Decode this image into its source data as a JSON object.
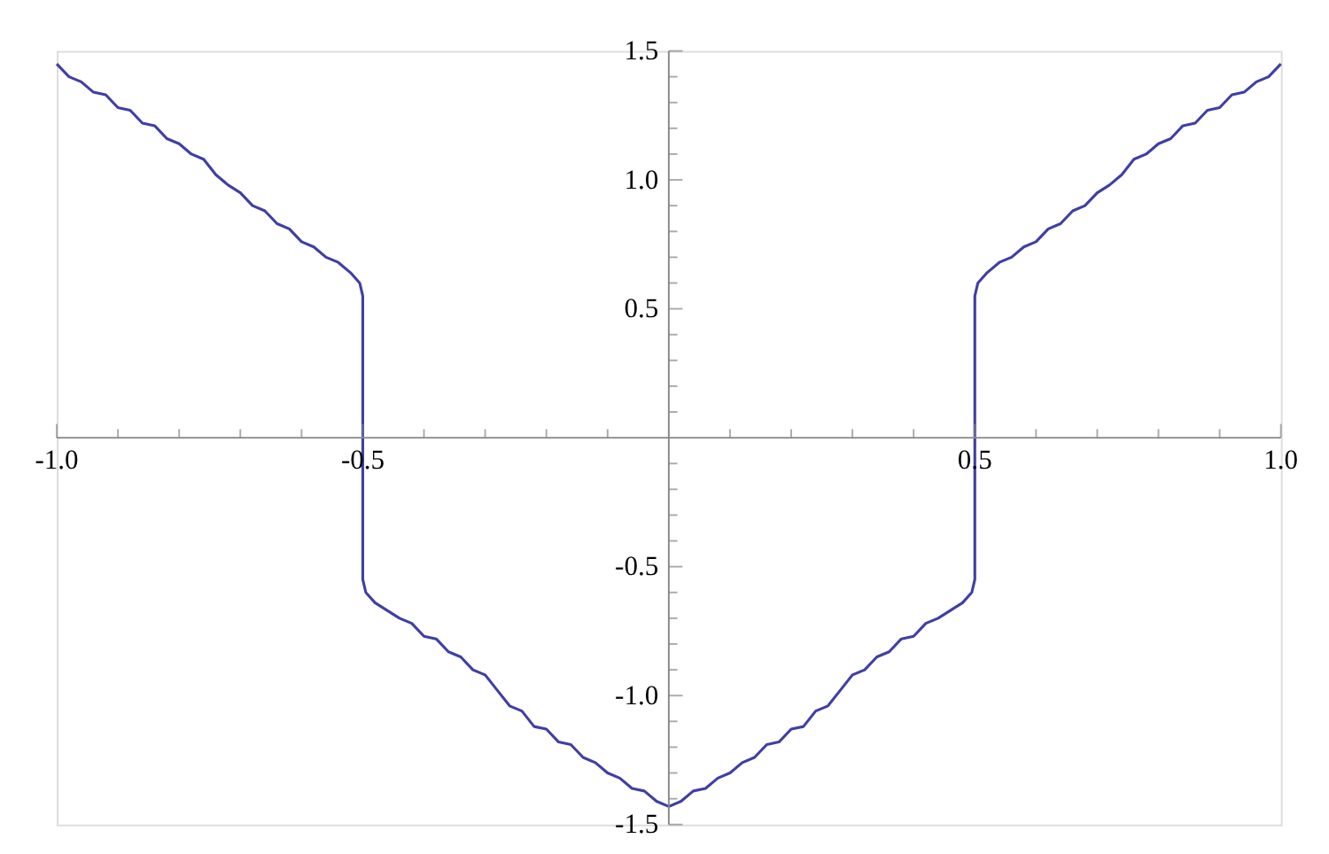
{
  "chart_data": {
    "type": "line",
    "x": [
      -1.0,
      -0.98,
      -0.96,
      -0.94,
      -0.92,
      -0.9,
      -0.88,
      -0.86,
      -0.84,
      -0.82,
      -0.8,
      -0.78,
      -0.76,
      -0.74,
      -0.72,
      -0.7,
      -0.68,
      -0.66,
      -0.64,
      -0.62,
      -0.6,
      -0.58,
      -0.56,
      -0.54,
      -0.52,
      -0.505,
      -0.5,
      -0.5,
      -0.495,
      -0.48,
      -0.46,
      -0.44,
      -0.42,
      -0.4,
      -0.38,
      -0.36,
      -0.34,
      -0.32,
      -0.3,
      -0.28,
      -0.26,
      -0.24,
      -0.22,
      -0.2,
      -0.18,
      -0.16,
      -0.14,
      -0.12,
      -0.1,
      -0.08,
      -0.06,
      -0.04,
      -0.02,
      0.0,
      0.02,
      0.04,
      0.06,
      0.08,
      0.1,
      0.12,
      0.14,
      0.16,
      0.18,
      0.2,
      0.22,
      0.24,
      0.26,
      0.28,
      0.3,
      0.32,
      0.34,
      0.36,
      0.38,
      0.4,
      0.42,
      0.44,
      0.46,
      0.48,
      0.495,
      0.5,
      0.5,
      0.505,
      0.52,
      0.54,
      0.56,
      0.58,
      0.6,
      0.62,
      0.64,
      0.66,
      0.68,
      0.7,
      0.72,
      0.74,
      0.76,
      0.78,
      0.8,
      0.82,
      0.84,
      0.86,
      0.88,
      0.9,
      0.92,
      0.94,
      0.96,
      0.98,
      1.0
    ],
    "series": [
      {
        "color": "#3f3fa6",
        "values": [
          1.45,
          1.4,
          1.38,
          1.34,
          1.33,
          1.28,
          1.27,
          1.22,
          1.21,
          1.16,
          1.14,
          1.1,
          1.08,
          1.02,
          0.98,
          0.95,
          0.9,
          0.88,
          0.83,
          0.81,
          0.76,
          0.74,
          0.7,
          0.68,
          0.64,
          0.6,
          0.55,
          -0.55,
          -0.6,
          -0.64,
          -0.67,
          -0.7,
          -0.72,
          -0.77,
          -0.78,
          -0.83,
          -0.85,
          -0.9,
          -0.92,
          -0.98,
          -1.04,
          -1.06,
          -1.12,
          -1.13,
          -1.18,
          -1.19,
          -1.24,
          -1.26,
          -1.3,
          -1.32,
          -1.36,
          -1.37,
          -1.41,
          -1.43,
          -1.41,
          -1.37,
          -1.36,
          -1.32,
          -1.3,
          -1.26,
          -1.24,
          -1.19,
          -1.18,
          -1.13,
          -1.12,
          -1.06,
          -1.04,
          -0.98,
          -0.92,
          -0.9,
          -0.85,
          -0.83,
          -0.78,
          -0.77,
          -0.72,
          -0.7,
          -0.67,
          -0.64,
          -0.6,
          -0.55,
          0.55,
          0.6,
          0.64,
          0.68,
          0.7,
          0.74,
          0.76,
          0.81,
          0.83,
          0.88,
          0.9,
          0.95,
          0.98,
          1.02,
          1.08,
          1.1,
          1.14,
          1.16,
          1.21,
          1.22,
          1.27,
          1.28,
          1.33,
          1.34,
          1.38,
          1.4,
          1.45
        ]
      }
    ],
    "xlim": [
      -1.0,
      1.0
    ],
    "ylim": [
      -1.5,
      1.5
    ],
    "xticks": [
      {
        "value": -1.0,
        "label": "-1.0"
      },
      {
        "value": -0.9,
        "label": null
      },
      {
        "value": -0.8,
        "label": null
      },
      {
        "value": -0.7,
        "label": null
      },
      {
        "value": -0.6,
        "label": null
      },
      {
        "value": -0.5,
        "label": "-0.5"
      },
      {
        "value": -0.4,
        "label": null
      },
      {
        "value": -0.3,
        "label": null
      },
      {
        "value": -0.2,
        "label": null
      },
      {
        "value": -0.1,
        "label": null
      },
      {
        "value": 0.1,
        "label": null
      },
      {
        "value": 0.2,
        "label": null
      },
      {
        "value": 0.3,
        "label": null
      },
      {
        "value": 0.4,
        "label": null
      },
      {
        "value": 0.5,
        "label": "0.5"
      },
      {
        "value": 0.6,
        "label": null
      },
      {
        "value": 0.7,
        "label": null
      },
      {
        "value": 0.8,
        "label": null
      },
      {
        "value": 0.9,
        "label": null
      },
      {
        "value": 1.0,
        "label": "1.0"
      }
    ],
    "yticks": [
      {
        "value": -1.5,
        "label": "-1.5"
      },
      {
        "value": -1.4,
        "label": null
      },
      {
        "value": -1.3,
        "label": null
      },
      {
        "value": -1.2,
        "label": null
      },
      {
        "value": -1.1,
        "label": null
      },
      {
        "value": -1.0,
        "label": "-1.0"
      },
      {
        "value": -0.9,
        "label": null
      },
      {
        "value": -0.8,
        "label": null
      },
      {
        "value": -0.7,
        "label": null
      },
      {
        "value": -0.6,
        "label": null
      },
      {
        "value": -0.5,
        "label": "-0.5"
      },
      {
        "value": -0.4,
        "label": null
      },
      {
        "value": -0.3,
        "label": null
      },
      {
        "value": -0.2,
        "label": null
      },
      {
        "value": -0.1,
        "label": null
      },
      {
        "value": 0.1,
        "label": null
      },
      {
        "value": 0.2,
        "label": null
      },
      {
        "value": 0.3,
        "label": null
      },
      {
        "value": 0.4,
        "label": null
      },
      {
        "value": 0.5,
        "label": "0.5"
      },
      {
        "value": 0.6,
        "label": null
      },
      {
        "value": 0.7,
        "label": null
      },
      {
        "value": 0.8,
        "label": null
      },
      {
        "value": 0.9,
        "label": null
      },
      {
        "value": 1.0,
        "label": "1.0"
      },
      {
        "value": 1.1,
        "label": null
      },
      {
        "value": 1.2,
        "label": null
      },
      {
        "value": 1.3,
        "label": null
      },
      {
        "value": 1.4,
        "label": null
      },
      {
        "value": 1.5,
        "label": "1.5"
      }
    ],
    "line_style": "solid"
  }
}
